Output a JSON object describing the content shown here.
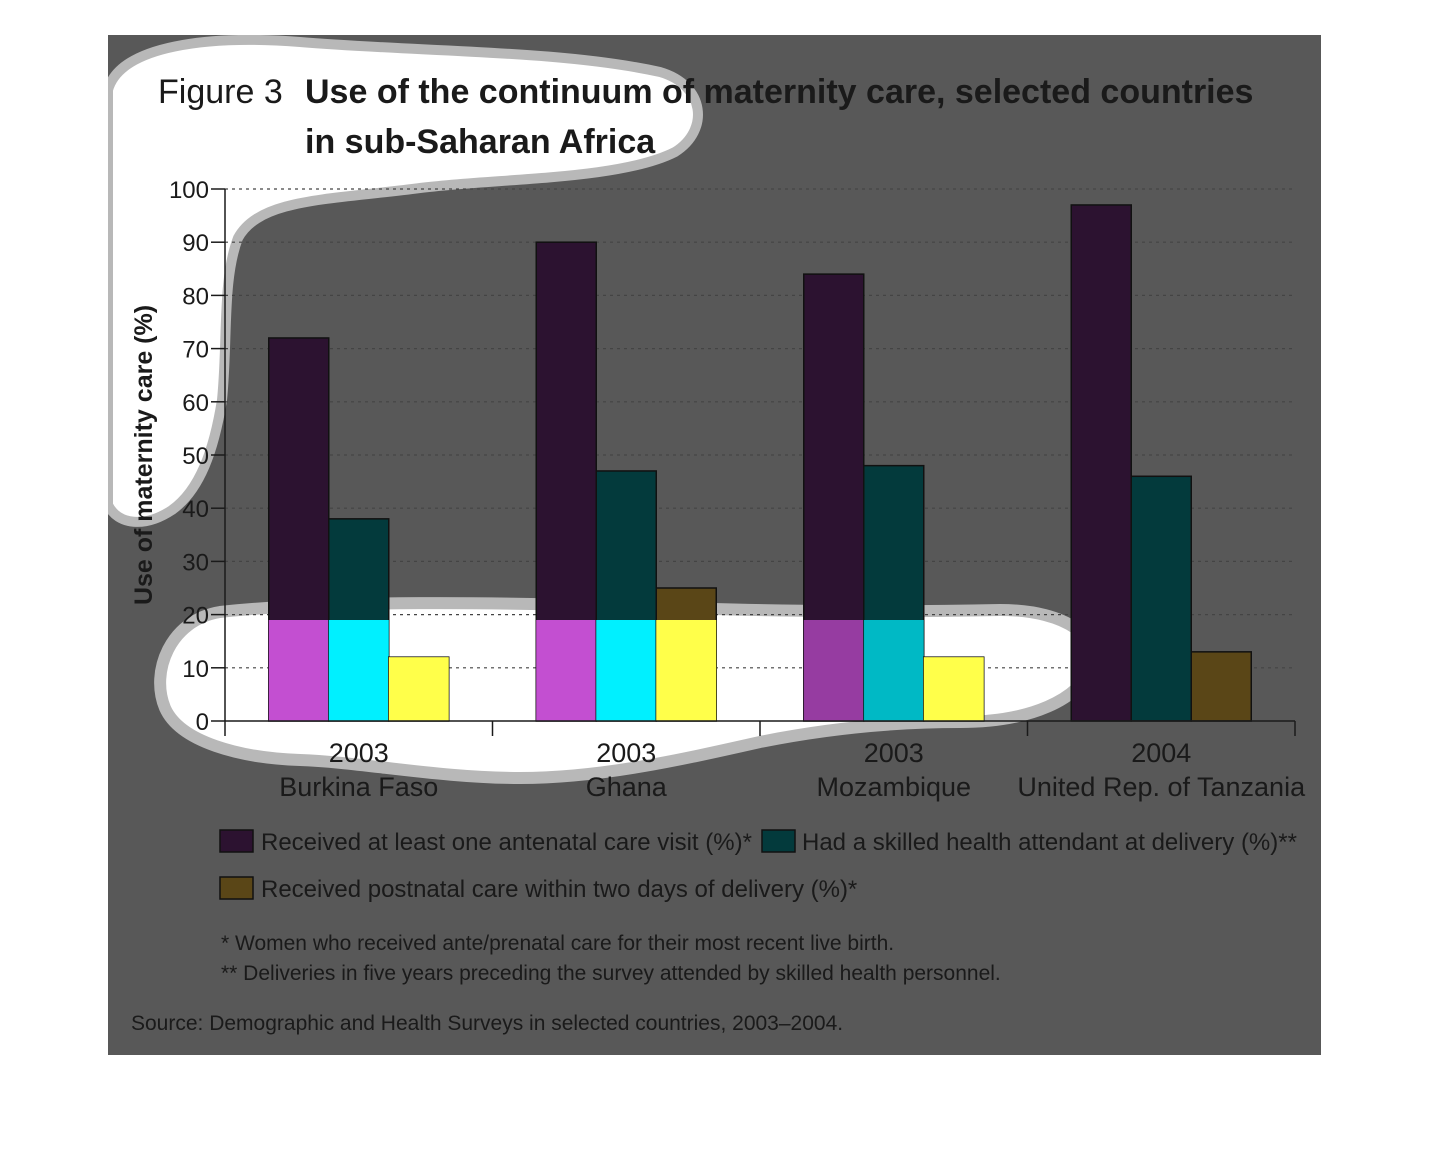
{
  "figure": {
    "label": "Figure 3",
    "title_line1": "Use of the continuum of maternity care, selected countries",
    "title_line2": "in sub-Saharan Africa"
  },
  "colors": {
    "panel": "#585858",
    "series": [
      "#2c1230",
      "#033a3c",
      "#5a4617"
    ],
    "highlight_fill": "#ffffff",
    "highlight_outline": "#b8b8b8",
    "highlight_series": [
      "#c34fd1",
      "#00f0ff",
      "#ffff4a"
    ]
  },
  "chart_data": {
    "type": "bar",
    "ylabel": "Use of maternity care (%)",
    "xlabel": "",
    "ylim": [
      0,
      100
    ],
    "yticks": [
      0,
      10,
      20,
      30,
      40,
      50,
      60,
      70,
      80,
      90,
      100
    ],
    "grid": true,
    "legend_position": "bottom",
    "categories": [
      {
        "year": "2003",
        "country": "Burkina Faso"
      },
      {
        "year": "2003",
        "country": "Ghana"
      },
      {
        "year": "2003",
        "country": "Mozambique"
      },
      {
        "year": "2004",
        "country": "United Rep. of Tanzania"
      }
    ],
    "series": [
      {
        "name": "Received at least one antenatal care visit (%)*",
        "values": [
          72,
          90,
          84,
          97
        ]
      },
      {
        "name": "Had a skilled health attendant at delivery (%)**",
        "values": [
          38,
          47,
          48,
          46
        ]
      },
      {
        "name": "Received postnatal care within two days of delivery (%)*",
        "values": [
          12,
          25,
          12,
          13
        ]
      }
    ]
  },
  "notes": [
    "* Women who received ante/prenatal care for their most recent live birth.",
    "** Deliveries in five years preceding the survey attended by skilled health personnel."
  ],
  "source": "Source: Demographic and Health Surveys in selected countries, 2003–2004."
}
